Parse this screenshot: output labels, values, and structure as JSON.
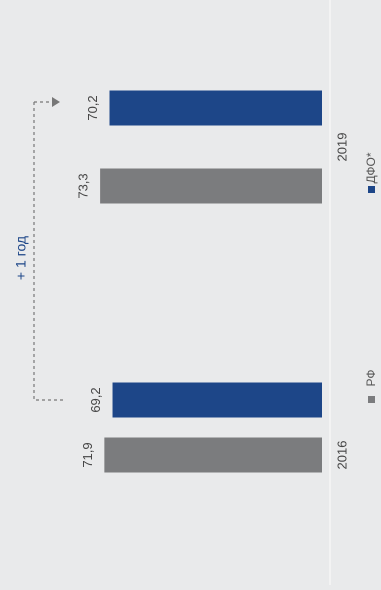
{
  "chart_data": {
    "type": "bar",
    "orientation": "rotated-90-ccw",
    "categories": [
      "2016",
      "2019"
    ],
    "series": [
      {
        "name": "РФ",
        "color": "#7b7c7e",
        "values": [
          71.9,
          73.3
        ]
      },
      {
        "name": "ДФО*",
        "color": "#1d4688",
        "values": [
          69.2,
          70.2
        ]
      }
    ],
    "value_labels": [
      [
        "71,9",
        "73,3"
      ],
      [
        "69,2",
        "70,2"
      ]
    ],
    "annotation": {
      "text": "+ 1 год",
      "color": "#1d4688"
    },
    "legend_position": "bottom",
    "ylim": [
      0,
      74
    ],
    "grid": false
  }
}
